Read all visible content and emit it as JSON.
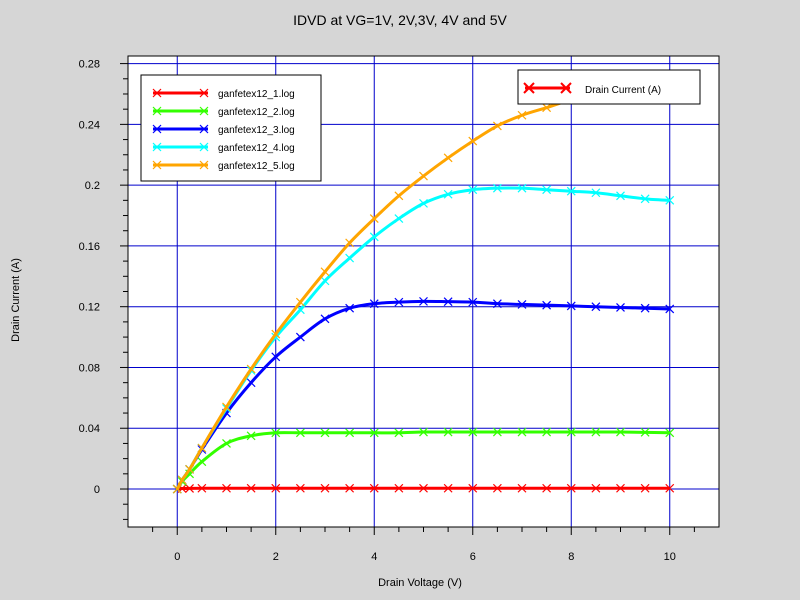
{
  "chart_data": {
    "type": "line",
    "title": "IDVD at VG=1V, 2V,3V, 4V and 5V",
    "xlabel": "Drain Voltage (V)",
    "ylabel": "Drain Current (A)",
    "xlim": [
      -1,
      11
    ],
    "ylim": [
      -0.025,
      0.285
    ],
    "xticks": [
      0,
      2,
      4,
      6,
      8,
      10
    ],
    "xtick_labels": [
      "0",
      "2",
      "4",
      "6",
      "8",
      "10"
    ],
    "yticks": [
      0,
      0.04,
      0.08,
      0.12,
      0.16,
      0.2,
      0.24,
      0.28
    ],
    "ytick_labels": [
      "0",
      "0.04",
      "0.08",
      "0.12",
      "0.16",
      "0.2",
      "0.24",
      "0.28"
    ],
    "grid": true,
    "legend_position": "top-left",
    "secondary_legend": {
      "label": "Drain Current (A)",
      "color": "#ff0000",
      "position": "top-right"
    },
    "x": [
      0,
      0.1,
      0.25,
      0.5,
      1,
      1.5,
      2,
      2.5,
      3,
      3.5,
      4,
      4.5,
      5,
      5.5,
      6,
      6.5,
      7,
      7.5,
      8,
      8.5,
      9,
      9.5,
      10
    ],
    "series": [
      {
        "name": "ganfetex12_1.log",
        "color": "#ff0000",
        "values": [
          0,
          0.0003,
          0.0004,
          0.0005,
          0.0005,
          0.0005,
          0.0005,
          0.0005,
          0.0005,
          0.0005,
          0.0005,
          0.0005,
          0.0005,
          0.0005,
          0.0005,
          0.0005,
          0.0005,
          0.0005,
          0.0005,
          0.0005,
          0.0005,
          0.0005,
          0.0005
        ]
      },
      {
        "name": "ganfetex12_2.log",
        "color": "#33ff00",
        "values": [
          0,
          0.005,
          0.01,
          0.018,
          0.03,
          0.035,
          0.037,
          0.037,
          0.037,
          0.037,
          0.037,
          0.037,
          0.0375,
          0.0375,
          0.0375,
          0.0375,
          0.0375,
          0.0375,
          0.0375,
          0.0375,
          0.0375,
          0.0373,
          0.037
        ]
      },
      {
        "name": "ganfetex12_3.log",
        "color": "#0000ff",
        "values": [
          0,
          0.006,
          0.013,
          0.026,
          0.05,
          0.07,
          0.087,
          0.1,
          0.112,
          0.119,
          0.122,
          0.123,
          0.1235,
          0.1233,
          0.123,
          0.122,
          0.1215,
          0.121,
          0.1205,
          0.12,
          0.1195,
          0.119,
          0.1185
        ]
      },
      {
        "name": "ganfetex12_4.log",
        "color": "#00ffff",
        "values": [
          0,
          0.006,
          0.013,
          0.027,
          0.053,
          0.078,
          0.1,
          0.118,
          0.137,
          0.152,
          0.166,
          0.178,
          0.188,
          0.194,
          0.197,
          0.198,
          0.198,
          0.197,
          0.196,
          0.195,
          0.193,
          0.191,
          0.19
        ]
      },
      {
        "name": "ganfetex12_5.log",
        "color": "#ffa500",
        "values": [
          0,
          0.006,
          0.013,
          0.027,
          0.054,
          0.079,
          0.102,
          0.123,
          0.143,
          0.162,
          0.178,
          0.193,
          0.206,
          0.218,
          0.229,
          0.239,
          0.246,
          0.251,
          0.256,
          0.258,
          0.259,
          0.259,
          0.258
        ]
      }
    ]
  }
}
